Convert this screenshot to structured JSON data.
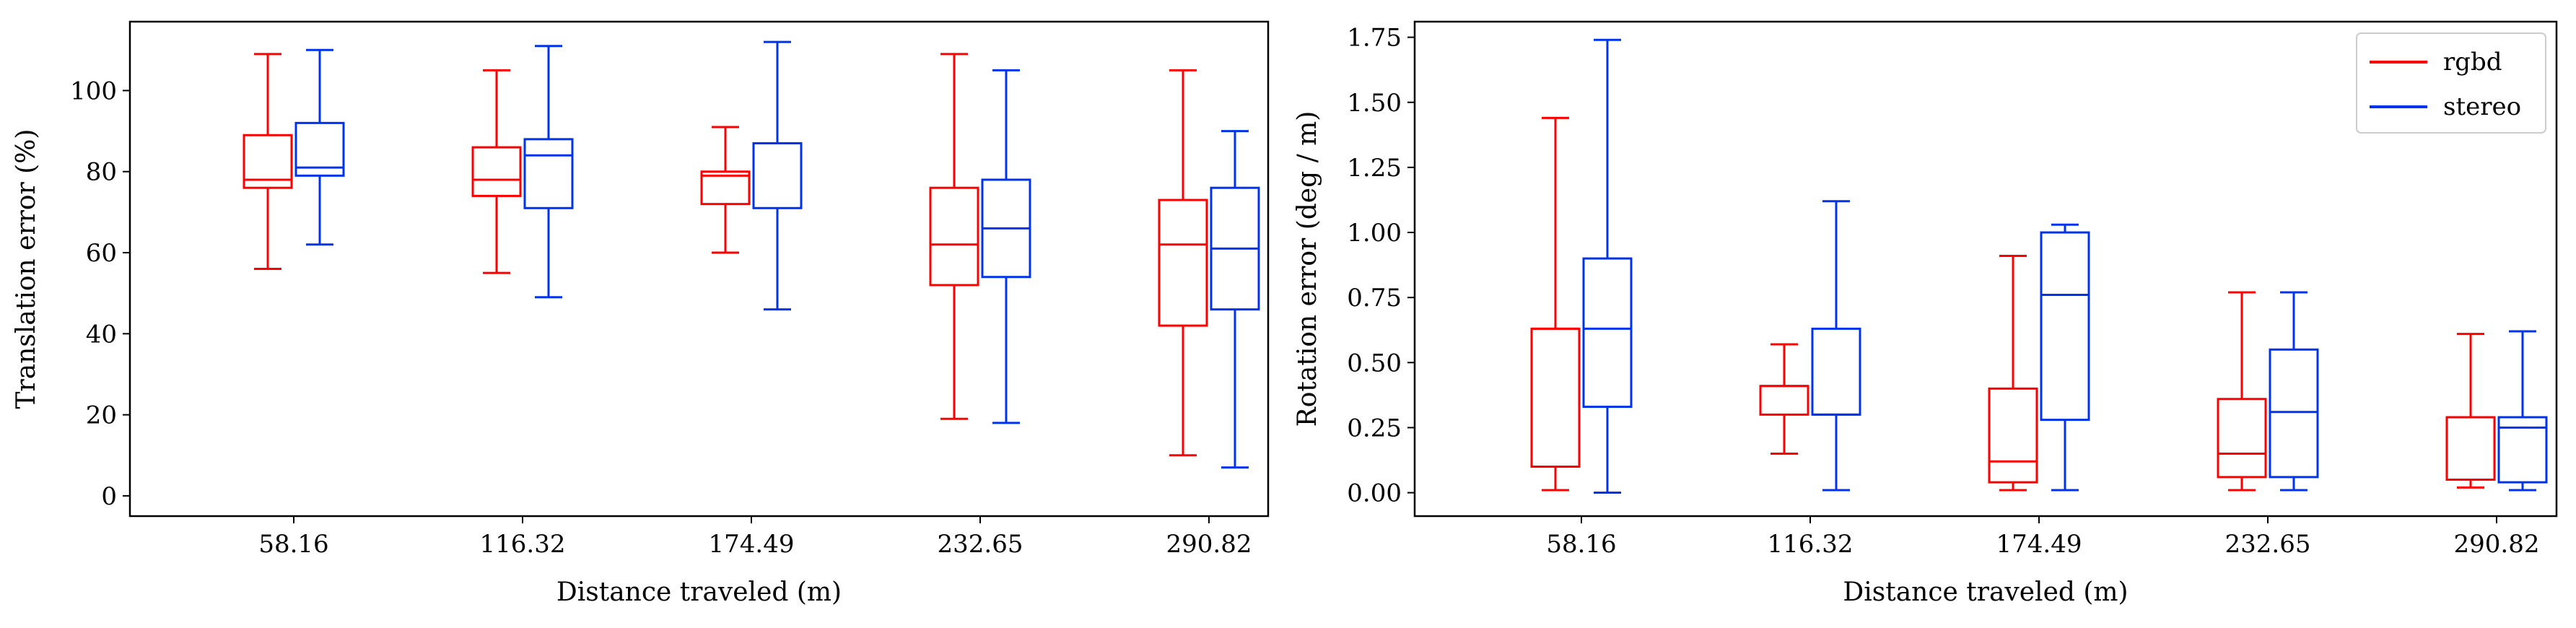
{
  "chart_data": [
    {
      "type": "box",
      "xlabel": "Distance traveled (m)",
      "ylabel": "Translation error (%)",
      "categories": [
        "58.16",
        "116.32",
        "174.49",
        "232.65",
        "290.82"
      ],
      "ylim": [
        -5,
        117
      ],
      "yticks": [
        0,
        20,
        40,
        60,
        80,
        100
      ],
      "ytick_labels": [
        "0",
        "20",
        "40",
        "60",
        "80",
        "100"
      ],
      "grid": false,
      "legend": false,
      "series": [
        {
          "name": "rgbd",
          "color": "#ff0000",
          "boxes": [
            {
              "min": 56,
              "q1": 76,
              "median": 78,
              "q3": 89,
              "max": 109
            },
            {
              "min": 55,
              "q1": 74,
              "median": 78,
              "q3": 86,
              "max": 105
            },
            {
              "min": 60,
              "q1": 72,
              "median": 79,
              "q3": 80,
              "max": 91
            },
            {
              "min": 19,
              "q1": 52,
              "median": 62,
              "q3": 76,
              "max": 109
            },
            {
              "min": 10,
              "q1": 42,
              "median": 62,
              "q3": 73,
              "max": 105
            }
          ]
        },
        {
          "name": "stereo",
          "color": "#0033ee",
          "boxes": [
            {
              "min": 62,
              "q1": 79,
              "median": 81,
              "q3": 92,
              "max": 110
            },
            {
              "min": 49,
              "q1": 71,
              "median": 84,
              "q3": 88,
              "max": 111
            },
            {
              "min": 46,
              "q1": 71,
              "median": 87,
              "q3": 87,
              "max": 112
            },
            {
              "min": 18,
              "q1": 54,
              "median": 66,
              "q3": 78,
              "max": 105
            },
            {
              "min": 7,
              "q1": 46,
              "median": 61,
              "q3": 76,
              "max": 90
            }
          ]
        }
      ]
    },
    {
      "type": "box",
      "xlabel": "Distance traveled (m)",
      "ylabel": "Rotation error (deg / m)",
      "categories": [
        "58.16",
        "116.32",
        "174.49",
        "232.65",
        "290.82"
      ],
      "ylim": [
        -0.09,
        1.81
      ],
      "yticks": [
        0,
        0.25,
        0.5,
        0.75,
        1.0,
        1.25,
        1.5,
        1.75
      ],
      "ytick_labels": [
        "0.00",
        "0.25",
        "0.50",
        "0.75",
        "1.00",
        "1.25",
        "1.50",
        "1.75"
      ],
      "grid": false,
      "legend": "top-right",
      "series": [
        {
          "name": "rgbd",
          "color": "#ff0000",
          "boxes": [
            {
              "min": 0.01,
              "q1": 0.1,
              "median": 0.63,
              "q3": 0.63,
              "max": 1.44
            },
            {
              "min": 0.15,
              "q1": 0.3,
              "median": 0.41,
              "q3": 0.41,
              "max": 0.57
            },
            {
              "min": 0.01,
              "q1": 0.04,
              "median": 0.12,
              "q3": 0.4,
              "max": 0.91
            },
            {
              "min": 0.01,
              "q1": 0.06,
              "median": 0.15,
              "q3": 0.36,
              "max": 0.77
            },
            {
              "min": 0.02,
              "q1": 0.05,
              "median": 0.29,
              "q3": 0.29,
              "max": 0.61
            }
          ]
        },
        {
          "name": "stereo",
          "color": "#0033ee",
          "boxes": [
            {
              "min": 0.0,
              "q1": 0.33,
              "median": 0.63,
              "q3": 0.9,
              "max": 1.74
            },
            {
              "min": 0.01,
              "q1": 0.3,
              "median": 0.3,
              "q3": 0.63,
              "max": 1.12
            },
            {
              "min": 0.01,
              "q1": 0.28,
              "median": 0.76,
              "q3": 1.0,
              "max": 1.03
            },
            {
              "min": 0.01,
              "q1": 0.06,
              "median": 0.31,
              "q3": 0.55,
              "max": 0.77
            },
            {
              "min": 0.01,
              "q1": 0.04,
              "median": 0.25,
              "q3": 0.29,
              "max": 0.62
            }
          ]
        }
      ]
    }
  ]
}
